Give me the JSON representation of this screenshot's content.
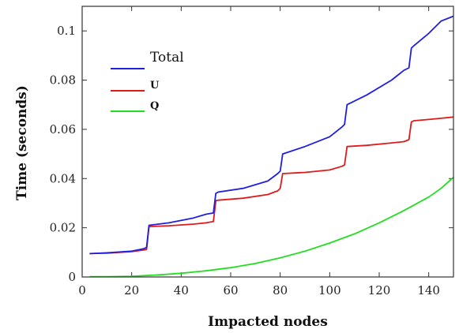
{
  "chart_data": {
    "type": "line",
    "title": "",
    "xlabel": "Impacted nodes",
    "ylabel": "Time (seconds)",
    "xlim": [
      0,
      150
    ],
    "ylim": [
      0,
      0.11
    ],
    "xticks": [
      0,
      20,
      40,
      60,
      80,
      100,
      120,
      140
    ],
    "yticks": [
      0,
      0.02,
      0.04,
      0.06,
      0.08,
      0.1
    ],
    "xtick_labels": [
      "0",
      "20",
      "40",
      "60",
      "80",
      "100",
      "120",
      "140"
    ],
    "ytick_labels": [
      "0",
      "0.02",
      "0.04",
      "0.06",
      "0.08",
      "0.1"
    ],
    "grid": false,
    "legend_position": "upper-left",
    "series": [
      {
        "name": "Total",
        "color": "#1f1fe0",
        "x": [
          3,
          10,
          20,
          25,
          26,
          27,
          35,
          45,
          50,
          53,
          54,
          55,
          65,
          75,
          79,
          80,
          81,
          90,
          100,
          105,
          106,
          107,
          115,
          125,
          130,
          132,
          133,
          134,
          140,
          145,
          150
        ],
        "y": [
          0.0095,
          0.0098,
          0.0105,
          0.0115,
          0.012,
          0.021,
          0.022,
          0.024,
          0.0255,
          0.026,
          0.034,
          0.0345,
          0.036,
          0.039,
          0.042,
          0.043,
          0.05,
          0.053,
          0.057,
          0.061,
          0.062,
          0.07,
          0.074,
          0.08,
          0.084,
          0.085,
          0.093,
          0.094,
          0.099,
          0.104,
          0.106
        ]
      },
      {
        "name": "U",
        "color": "#e01a1a",
        "x": [
          3,
          10,
          20,
          25,
          26,
          27,
          35,
          45,
          50,
          53,
          54,
          55,
          65,
          75,
          79,
          80,
          81,
          90,
          100,
          105,
          106,
          107,
          115,
          125,
          130,
          132,
          133,
          134,
          140,
          145,
          150
        ],
        "y": [
          0.0095,
          0.0097,
          0.0103,
          0.011,
          0.0112,
          0.0205,
          0.0208,
          0.0215,
          0.022,
          0.0225,
          0.031,
          0.0312,
          0.032,
          0.0335,
          0.035,
          0.036,
          0.042,
          0.0425,
          0.0435,
          0.045,
          0.0455,
          0.053,
          0.0535,
          0.0545,
          0.055,
          0.0558,
          0.063,
          0.0635,
          0.064,
          0.0645,
          0.065
        ]
      },
      {
        "name": "Q",
        "color": "#22dd22",
        "x": [
          3,
          10,
          20,
          30,
          40,
          50,
          60,
          70,
          80,
          90,
          100,
          110,
          120,
          130,
          140,
          145,
          150
        ],
        "y": [
          0.0001,
          0.0001,
          0.0003,
          0.0008,
          0.0015,
          0.0025,
          0.0038,
          0.0055,
          0.0078,
          0.0105,
          0.0138,
          0.0175,
          0.022,
          0.027,
          0.0325,
          0.036,
          0.0405
        ]
      }
    ]
  }
}
